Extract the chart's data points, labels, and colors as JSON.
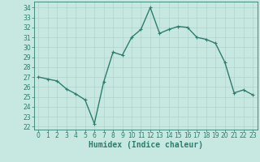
{
  "x": [
    0,
    1,
    2,
    3,
    4,
    5,
    6,
    7,
    8,
    9,
    10,
    11,
    12,
    13,
    14,
    15,
    16,
    17,
    18,
    19,
    20,
    21,
    22,
    23
  ],
  "y": [
    27.0,
    26.8,
    26.6,
    25.8,
    25.3,
    24.7,
    22.3,
    26.5,
    29.5,
    29.2,
    31.0,
    31.8,
    34.0,
    31.4,
    31.8,
    32.1,
    32.0,
    31.0,
    30.8,
    30.4,
    28.5,
    25.4,
    25.7,
    25.2
  ],
  "line_color": "#2e7d6e",
  "marker": "+",
  "marker_color": "#2e7d6e",
  "bg_color": "#c6e8e0",
  "grid_color": "#b0d4cc",
  "tick_color": "#2e7d6e",
  "xlabel": "Humidex (Indice chaleur)",
  "xlabel_fontsize": 7,
  "ylabel_ticks": [
    22,
    23,
    24,
    25,
    26,
    27,
    28,
    29,
    30,
    31,
    32,
    33,
    34
  ],
  "ylim": [
    21.7,
    34.6
  ],
  "xlim": [
    -0.5,
    23.5
  ],
  "xticks": [
    0,
    1,
    2,
    3,
    4,
    5,
    6,
    7,
    8,
    9,
    10,
    11,
    12,
    13,
    14,
    15,
    16,
    17,
    18,
    19,
    20,
    21,
    22,
    23
  ],
  "tick_fontsize": 5.5,
  "linewidth": 1.0,
  "marker_size": 3.5
}
